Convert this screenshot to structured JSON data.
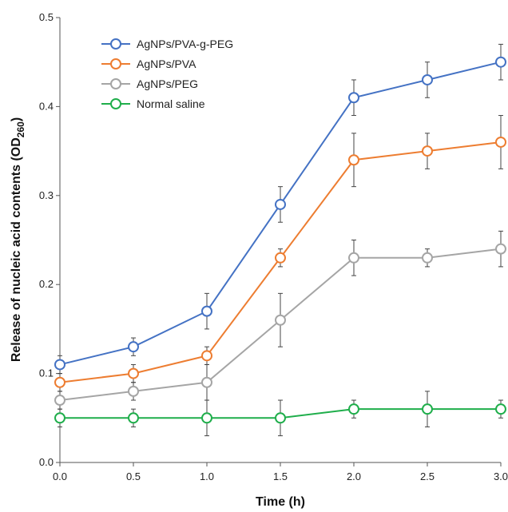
{
  "chart_data": {
    "type": "line",
    "title": "",
    "xlabel": "Time (h)",
    "ylabel": {
      "main": "Release of nucleic acid contents (OD",
      "sub": "260",
      "close": ")"
    },
    "x": [
      0.0,
      0.5,
      1.0,
      1.5,
      2.0,
      2.5,
      3.0
    ],
    "xlim": [
      0,
      3
    ],
    "ylim": [
      0,
      0.5
    ],
    "x_ticks": [
      "0.0",
      "0.5",
      "1.0",
      "1.5",
      "2.0",
      "2.5",
      "3.0"
    ],
    "y_ticks": [
      "0.0",
      "0.1",
      "0.2",
      "0.3",
      "0.4",
      "0.5"
    ],
    "grid": false,
    "legend_position": "top-left",
    "series": [
      {
        "name": "AgNPs/PVA-g-PEG",
        "color": "#4472C4",
        "values": [
          0.11,
          0.13,
          0.17,
          0.29,
          0.41,
          0.43,
          0.45
        ],
        "errors": [
          0.01,
          0.01,
          0.02,
          0.02,
          0.02,
          0.02,
          0.02
        ]
      },
      {
        "name": "AgNPs/PVA",
        "color": "#ED7D31",
        "values": [
          0.09,
          0.1,
          0.12,
          0.23,
          0.34,
          0.35,
          0.36
        ],
        "errors": [
          0.01,
          0.01,
          0.01,
          0.01,
          0.03,
          0.02,
          0.03
        ]
      },
      {
        "name": "AgNPs/PEG",
        "color": "#A5A5A5",
        "values": [
          0.07,
          0.08,
          0.09,
          0.16,
          0.23,
          0.23,
          0.24
        ],
        "errors": [
          0.01,
          0.01,
          0.02,
          0.03,
          0.02,
          0.01,
          0.02
        ]
      },
      {
        "name": "Normal saline",
        "color": "#1FAE4B",
        "values": [
          0.05,
          0.05,
          0.05,
          0.05,
          0.06,
          0.06,
          0.06
        ],
        "errors": [
          0.01,
          0.01,
          0.02,
          0.02,
          0.01,
          0.02,
          0.01
        ]
      }
    ]
  }
}
